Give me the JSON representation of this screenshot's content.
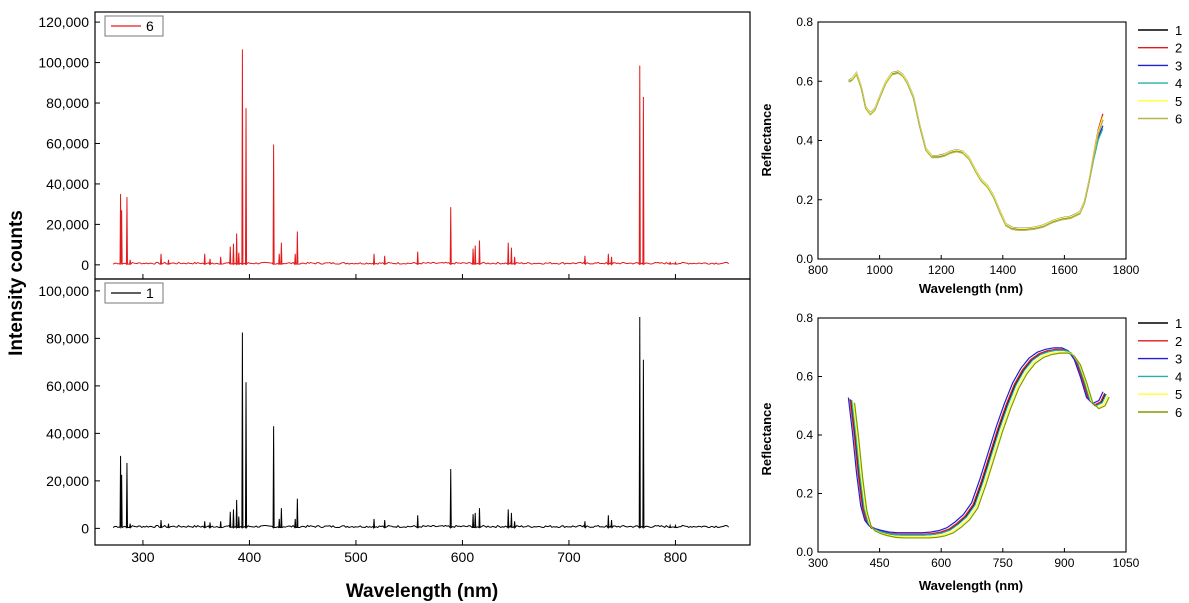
{
  "chart_data": [
    {
      "id": "libs-top",
      "type": "line",
      "xlabel": "Wavelength (nm)",
      "ylabel": "Intensity counts",
      "xlim": [
        255,
        870
      ],
      "ylim": [
        -7000,
        125000
      ],
      "xticks": [
        300,
        400,
        500,
        600,
        700,
        800
      ],
      "yticks": [
        0,
        20000,
        40000,
        60000,
        80000,
        100000,
        120000
      ],
      "ytick_labels": [
        "0",
        "20,000",
        "40,000",
        "60,000",
        "80,000",
        "100,000",
        "120,000"
      ],
      "legend_location": "top-left",
      "color": "#e31a1c",
      "series": [
        {
          "name": "6",
          "baseline_x": [
            272,
            850
          ],
          "peaks": [
            {
              "x": 279,
              "y": 35000
            },
            {
              "x": 280,
              "y": 27000
            },
            {
              "x": 285,
              "y": 33500
            },
            {
              "x": 288,
              "y": 2500
            },
            {
              "x": 317,
              "y": 5500
            },
            {
              "x": 324,
              "y": 2500
            },
            {
              "x": 358,
              "y": 5500
            },
            {
              "x": 363,
              "y": 3000
            },
            {
              "x": 373,
              "y": 4000
            },
            {
              "x": 382,
              "y": 9000
            },
            {
              "x": 385,
              "y": 10500
            },
            {
              "x": 388,
              "y": 15500
            },
            {
              "x": 390,
              "y": 6000
            },
            {
              "x": 393.4,
              "y": 106500
            },
            {
              "x": 396.8,
              "y": 77500
            },
            {
              "x": 422.7,
              "y": 59500
            },
            {
              "x": 428,
              "y": 5500
            },
            {
              "x": 430,
              "y": 11000
            },
            {
              "x": 443,
              "y": 5500
            },
            {
              "x": 445,
              "y": 16500
            },
            {
              "x": 517,
              "y": 5500
            },
            {
              "x": 527,
              "y": 4500
            },
            {
              "x": 558,
              "y": 6500
            },
            {
              "x": 589,
              "y": 28500
            },
            {
              "x": 610,
              "y": 8000
            },
            {
              "x": 612,
              "y": 9500
            },
            {
              "x": 616,
              "y": 12000
            },
            {
              "x": 643,
              "y": 11000
            },
            {
              "x": 646,
              "y": 8500
            },
            {
              "x": 649,
              "y": 4000
            },
            {
              "x": 715,
              "y": 4500
            },
            {
              "x": 737,
              "y": 5500
            },
            {
              "x": 740,
              "y": 4000
            },
            {
              "x": 766.5,
              "y": 98500
            },
            {
              "x": 769.9,
              "y": 83000
            },
            {
              "x": 795,
              "y": 1500
            },
            {
              "x": 800,
              "y": 1500
            }
          ]
        }
      ]
    },
    {
      "id": "libs-bottom",
      "type": "line",
      "xlabel": "Wavelength (nm)",
      "ylabel": "Intensity counts",
      "xlim": [
        255,
        870
      ],
      "ylim": [
        -7000,
        105000
      ],
      "xticks": [
        300,
        400,
        500,
        600,
        700,
        800
      ],
      "xtick_labels": [
        "300",
        "400",
        "500",
        "600",
        "700",
        "800"
      ],
      "yticks": [
        0,
        20000,
        40000,
        60000,
        80000,
        100000
      ],
      "ytick_labels": [
        "0",
        "20,000",
        "40,000",
        "60,000",
        "80,000",
        "100,000"
      ],
      "legend_location": "top-left",
      "color": "#000000",
      "series": [
        {
          "name": "1",
          "baseline_x": [
            272,
            850
          ],
          "peaks": [
            {
              "x": 279,
              "y": 30500
            },
            {
              "x": 280,
              "y": 22500
            },
            {
              "x": 285,
              "y": 27500
            },
            {
              "x": 288,
              "y": 2000
            },
            {
              "x": 317,
              "y": 3500
            },
            {
              "x": 324,
              "y": 2000
            },
            {
              "x": 358,
              "y": 3000
            },
            {
              "x": 363,
              "y": 2500
            },
            {
              "x": 373,
              "y": 3000
            },
            {
              "x": 382,
              "y": 7000
            },
            {
              "x": 385,
              "y": 8000
            },
            {
              "x": 388,
              "y": 12000
            },
            {
              "x": 390,
              "y": 5000
            },
            {
              "x": 393.4,
              "y": 82500
            },
            {
              "x": 396.8,
              "y": 61500
            },
            {
              "x": 422.7,
              "y": 43000
            },
            {
              "x": 428,
              "y": 4000
            },
            {
              "x": 430,
              "y": 8500
            },
            {
              "x": 443,
              "y": 4000
            },
            {
              "x": 445,
              "y": 12500
            },
            {
              "x": 517,
              "y": 4000
            },
            {
              "x": 527,
              "y": 3500
            },
            {
              "x": 558,
              "y": 5500
            },
            {
              "x": 589,
              "y": 25000
            },
            {
              "x": 610,
              "y": 6000
            },
            {
              "x": 612,
              "y": 6500
            },
            {
              "x": 616,
              "y": 8500
            },
            {
              "x": 643,
              "y": 8000
            },
            {
              "x": 646,
              "y": 6500
            },
            {
              "x": 649,
              "y": 3000
            },
            {
              "x": 715,
              "y": 3000
            },
            {
              "x": 737,
              "y": 5500
            },
            {
              "x": 740,
              "y": 3500
            },
            {
              "x": 766.5,
              "y": 89000
            },
            {
              "x": 769.9,
              "y": 71000
            },
            {
              "x": 795,
              "y": 1200
            },
            {
              "x": 800,
              "y": 1200
            }
          ]
        }
      ]
    },
    {
      "id": "nir-reflectance",
      "type": "line",
      "xlabel": "Wavelength (nm)",
      "ylabel": "Reflectance",
      "xlim": [
        800,
        1800
      ],
      "ylim": [
        0.0,
        0.8
      ],
      "xticks": [
        800,
        1000,
        1200,
        1400,
        1600,
        1800
      ],
      "xtick_labels": [
        "800",
        "1000",
        "1200",
        "1400",
        "1600",
        "1800"
      ],
      "yticks": [
        0.0,
        0.2,
        0.4,
        0.6,
        0.8
      ],
      "ytick_labels": [
        "0.0",
        "0.2",
        "0.4",
        "0.6",
        "0.8"
      ],
      "legend_location": "outside-right",
      "x": [
        900,
        910,
        925,
        940,
        955,
        970,
        985,
        1000,
        1020,
        1040,
        1060,
        1075,
        1090,
        1110,
        1130,
        1150,
        1170,
        1190,
        1210,
        1230,
        1250,
        1270,
        1290,
        1310,
        1330,
        1350,
        1370,
        1390,
        1410,
        1430,
        1450,
        1470,
        1500,
        1530,
        1560,
        1590,
        1620,
        1650,
        1665,
        1680,
        1695,
        1710,
        1725
      ],
      "base": [
        0.6,
        0.605,
        0.625,
        0.58,
        0.51,
        0.49,
        0.505,
        0.545,
        0.595,
        0.625,
        0.63,
        0.62,
        0.595,
        0.545,
        0.45,
        0.37,
        0.345,
        0.345,
        0.35,
        0.36,
        0.365,
        0.36,
        0.34,
        0.3,
        0.265,
        0.245,
        0.21,
        0.16,
        0.115,
        0.103,
        0.1,
        0.1,
        0.103,
        0.11,
        0.125,
        0.135,
        0.14,
        0.155,
        0.19,
        0.26,
        0.35,
        0.43,
        0.48
      ],
      "series": [
        {
          "name": "1",
          "color": "#000000",
          "offset": 0.0,
          "end": 0.47
        },
        {
          "name": "2",
          "color": "#e31a1c",
          "offset": 0.002,
          "end": 0.49
        },
        {
          "name": "3",
          "color": "#1f1fd6",
          "offset": 0.004,
          "end": 0.45
        },
        {
          "name": "4",
          "color": "#20b2aa",
          "offset": -0.002,
          "end": 0.44
        },
        {
          "name": "5",
          "color": "#ffff33",
          "offset": 0.003,
          "end": 0.48
        },
        {
          "name": "6",
          "color": "#b8b54a",
          "offset": -0.003,
          "end": 0.47
        }
      ]
    },
    {
      "id": "vis-reflectance",
      "type": "line",
      "xlabel": "Wavelength (nm)",
      "ylabel": "Reflectance",
      "xlim": [
        300,
        1050
      ],
      "ylim": [
        0.0,
        0.8
      ],
      "xticks": [
        300,
        450,
        600,
        750,
        900,
        1050
      ],
      "xtick_labels": [
        "300",
        "450",
        "600",
        "750",
        "900",
        "1050"
      ],
      "yticks": [
        0.0,
        0.2,
        0.4,
        0.6,
        0.8
      ],
      "ytick_labels": [
        "0.0",
        "0.2",
        "0.4",
        "0.6",
        "0.8"
      ],
      "legend_location": "outside-right",
      "x": [
        380,
        390,
        400,
        410,
        420,
        430,
        445,
        460,
        480,
        500,
        520,
        540,
        560,
        580,
        600,
        620,
        640,
        660,
        680,
        700,
        720,
        740,
        760,
        780,
        800,
        820,
        840,
        860,
        880,
        900,
        915,
        930,
        945,
        960,
        975,
        990,
        1000
      ],
      "base": [
        0.52,
        0.4,
        0.26,
        0.15,
        0.1,
        0.082,
        0.072,
        0.066,
        0.06,
        0.058,
        0.058,
        0.058,
        0.058,
        0.06,
        0.065,
        0.075,
        0.095,
        0.12,
        0.16,
        0.24,
        0.33,
        0.42,
        0.5,
        0.57,
        0.62,
        0.655,
        0.675,
        0.685,
        0.69,
        0.69,
        0.68,
        0.65,
        0.59,
        0.52,
        0.5,
        0.51,
        0.54
      ],
      "series": [
        {
          "name": "1",
          "color": "#000000",
          "offset": 0.0,
          "shift": 0
        },
        {
          "name": "2",
          "color": "#e31a1c",
          "offset": 0.003,
          "shift": -2
        },
        {
          "name": "3",
          "color": "#1f1fd6",
          "offset": 0.008,
          "shift": -6
        },
        {
          "name": "4",
          "color": "#20b2aa",
          "offset": 0.0,
          "shift": 2
        },
        {
          "name": "5",
          "color": "#ffff33",
          "offset": -0.006,
          "shift": 6
        },
        {
          "name": "6",
          "color": "#7f9a00",
          "offset": -0.01,
          "shift": 9
        }
      ]
    }
  ]
}
